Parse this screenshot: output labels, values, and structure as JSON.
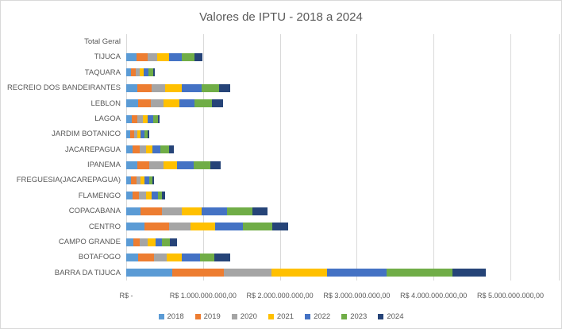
{
  "chart_data": {
    "type": "bar",
    "orientation": "horizontal",
    "stacked": true,
    "title": "Valores de IPTU - 2018 a 2024",
    "categories": [
      "Total Geral",
      "TIJUCA",
      "TAQUARA",
      "RECREIO DOS BANDEIRANTES",
      "LEBLON",
      "LAGOA",
      "JARDIM BOTANICO",
      "JACAREPAGUA",
      "IPANEMA",
      "FREGUESIA(JACAREPAGUA)",
      "FLAMENGO",
      "COPACABANA",
      "CENTRO",
      "CAMPO GRANDE",
      "BOTAFOGO",
      "BARRA DA TIJUCA"
    ],
    "series": [
      {
        "name": "2018",
        "color": "#5B9BD5",
        "values": [
          0,
          130000000,
          60000000,
          140000000,
          160000000,
          70000000,
          50000000,
          80000000,
          140000000,
          60000000,
          80000000,
          190000000,
          240000000,
          90000000,
          150000000,
          600000000
        ]
      },
      {
        "name": "2019",
        "color": "#ED7D31",
        "values": [
          0,
          150000000,
          60000000,
          190000000,
          160000000,
          70000000,
          50000000,
          100000000,
          160000000,
          70000000,
          90000000,
          270000000,
          320000000,
          90000000,
          210000000,
          670000000
        ]
      },
      {
        "name": "2020",
        "color": "#A5A5A5",
        "values": [
          0,
          120000000,
          60000000,
          180000000,
          170000000,
          80000000,
          50000000,
          80000000,
          190000000,
          60000000,
          90000000,
          260000000,
          280000000,
          100000000,
          170000000,
          620000000
        ]
      },
      {
        "name": "2021",
        "color": "#FFC000",
        "values": [
          0,
          160000000,
          50000000,
          210000000,
          200000000,
          60000000,
          40000000,
          80000000,
          170000000,
          50000000,
          70000000,
          260000000,
          320000000,
          100000000,
          190000000,
          720000000
        ]
      },
      {
        "name": "2022",
        "color": "#4472C4",
        "values": [
          0,
          160000000,
          60000000,
          260000000,
          200000000,
          70000000,
          50000000,
          100000000,
          220000000,
          60000000,
          80000000,
          330000000,
          360000000,
          90000000,
          240000000,
          780000000
        ]
      },
      {
        "name": "2023",
        "color": "#70AD47",
        "values": [
          0,
          170000000,
          60000000,
          230000000,
          230000000,
          60000000,
          40000000,
          120000000,
          220000000,
          40000000,
          60000000,
          330000000,
          380000000,
          100000000,
          190000000,
          860000000
        ]
      },
      {
        "name": "2024",
        "color": "#264478",
        "values": [
          0,
          100000000,
          20000000,
          140000000,
          140000000,
          20000000,
          20000000,
          60000000,
          130000000,
          20000000,
          40000000,
          200000000,
          210000000,
          90000000,
          200000000,
          430000000
        ]
      }
    ],
    "x_axis": {
      "min": 0,
      "max": 5000000000,
      "tick_interval": 1000000000,
      "tick_labels": [
        "R$ -",
        "R$ 1.000.000.000,00",
        "R$ 2.000.000.000,00",
        "R$ 3.000.000.000,00",
        "R$ 4.000.000.000,00",
        "R$ 5.000.000.000,00"
      ],
      "grid": true
    },
    "legend": {
      "position": "bottom",
      "entries": [
        "2018",
        "2019",
        "2020",
        "2021",
        "2022",
        "2023",
        "2024"
      ]
    },
    "colors": {
      "gridline": "#d9d9d9",
      "text": "#595959",
      "background": "#ffffff"
    }
  }
}
